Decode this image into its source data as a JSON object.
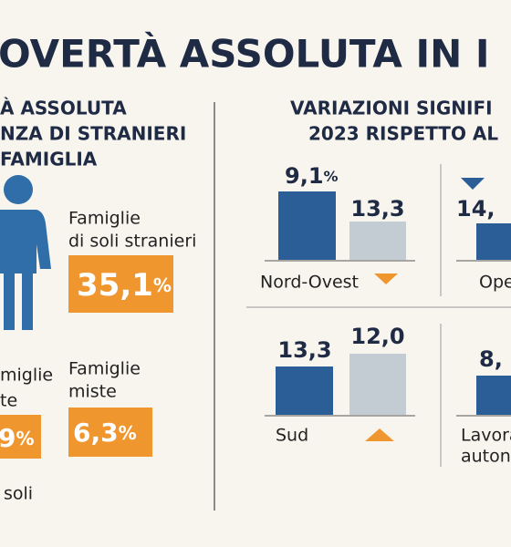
{
  "header": {
    "title": "OVERTÀ ASSOLUTA IN I"
  },
  "left": {
    "title_lines": [
      "À ASSOLUTA",
      "NZA DI STRANIERI",
      "FAMIGLIA"
    ],
    "items": [
      {
        "label_lines": [
          "Famiglie",
          "di soli stranieri"
        ],
        "number": "35,1",
        "unit": "%"
      },
      {
        "label_lines": [
          "miglie",
          "te"
        ],
        "number": "9",
        "unit": "%",
        "note": "soli"
      },
      {
        "label_lines": [
          "Famiglie",
          "miste"
        ],
        "number": "6,3",
        "unit": "%"
      }
    ]
  },
  "right": {
    "title_lines": [
      "VARIAZIONI SIGNIFI",
      "2023 RISPETTO AL"
    ],
    "panels": [
      {
        "label_lines": [
          "Nord-Ovest"
        ],
        "value_a": "9,1",
        "unit_a": "%",
        "value_b": "13,3"
      },
      {
        "label_lines": [
          "Ope"
        ],
        "value_a": "14,"
      },
      {
        "label_lines": [
          "Sud"
        ],
        "value_a": "13,3",
        "value_b": "12,0"
      },
      {
        "label_lines": [
          "Lavora",
          "auton"
        ],
        "value_a": "8,"
      }
    ]
  }
}
